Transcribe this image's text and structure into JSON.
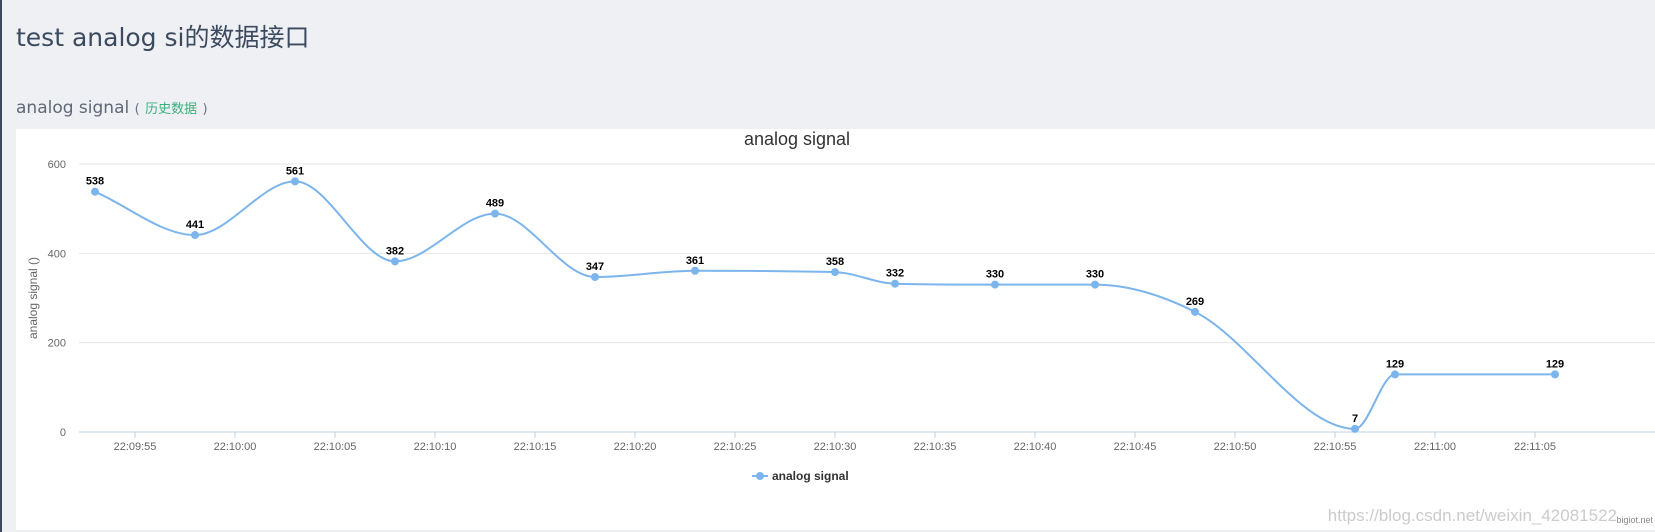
{
  "page": {
    "title": "test analog si的数据接口"
  },
  "section": {
    "name": "analog signal",
    "paren_open": "(",
    "link_label": "历史数据",
    "paren_close": ")"
  },
  "chart_data": {
    "type": "line",
    "title": "analog signal",
    "xlabel": "",
    "ylabel": "analog signal ()",
    "ylim": [
      0,
      600
    ],
    "yticks": [
      0,
      200,
      400,
      600
    ],
    "x": [
      "22:09:53",
      "22:09:58",
      "22:10:03",
      "22:10:08",
      "22:10:13",
      "22:10:18",
      "22:10:23",
      "22:10:30",
      "22:10:33",
      "22:10:38",
      "22:10:43",
      "22:10:48",
      "22:10:56",
      "22:10:58",
      "22:11:06"
    ],
    "xticks": [
      "22:09:55",
      "22:10:00",
      "22:10:05",
      "22:10:10",
      "22:10:15",
      "22:10:20",
      "22:10:25",
      "22:10:30",
      "22:10:35",
      "22:10:40",
      "22:10:45",
      "22:10:50",
      "22:10:55",
      "22:11:00",
      "22:11:05"
    ],
    "series": [
      {
        "name": "analog signal",
        "values": [
          538,
          441,
          561,
          382,
          489,
          347,
          361,
          358,
          332,
          330,
          330,
          269,
          7,
          129,
          129
        ]
      }
    ],
    "legend": "bottom-center",
    "grid": true,
    "line_color": "#7cb5ec"
  },
  "footer": {
    "credit": "bigiot.net",
    "watermark": "https://blog.csdn.net/weixin_42081522"
  }
}
